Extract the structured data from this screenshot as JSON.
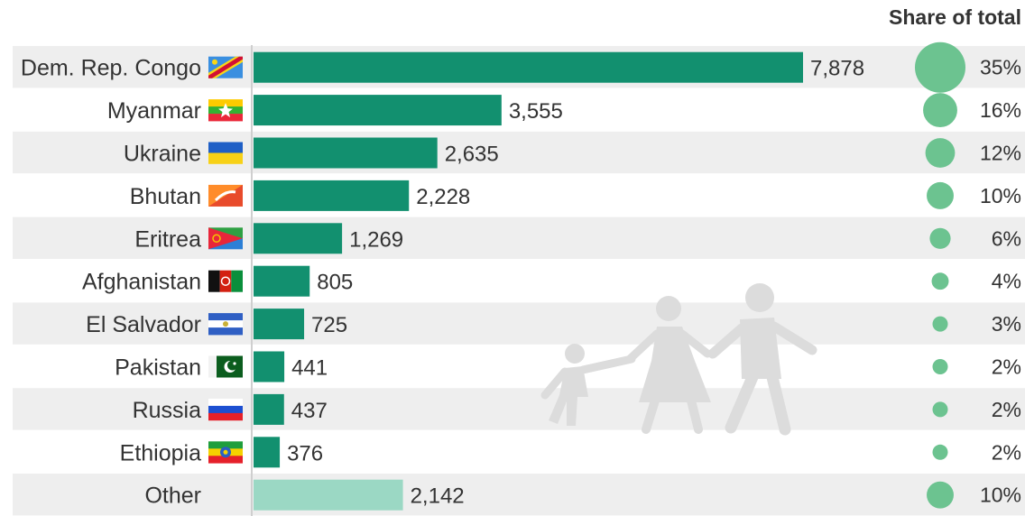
{
  "chart_data": {
    "type": "bar",
    "orientation": "horizontal",
    "categories": [
      "Dem. Rep. Congo",
      "Myanmar",
      "Ukraine",
      "Bhutan",
      "Eritrea",
      "Afghanistan",
      "El Salvador",
      "Pakistan",
      "Russia",
      "Ethiopia",
      "Other"
    ],
    "values": [
      7878,
      3555,
      2635,
      2228,
      1269,
      805,
      725,
      441,
      437,
      376,
      2142
    ],
    "value_labels": [
      "7,878",
      "3,555",
      "2,635",
      "2,228",
      "1,269",
      "805",
      "725",
      "441",
      "437",
      "376",
      "2,142"
    ],
    "share_header": "Share of total",
    "shares": [
      35,
      16,
      12,
      10,
      6,
      4,
      3,
      2,
      2,
      2,
      10
    ],
    "share_labels": [
      "35%",
      "16%",
      "12%",
      "10%",
      "6%",
      "4%",
      "3%",
      "2%",
      "2%",
      "2%",
      "10%"
    ],
    "flags": [
      "congo-flag",
      "myanmar-flag",
      "ukraine-flag",
      "bhutan-flag",
      "eritrea-flag",
      "afghanistan-flag",
      "el-salvador-flag",
      "pakistan-flag",
      "russia-flag",
      "ethiopia-flag",
      null
    ],
    "xlim": [
      0,
      7878
    ],
    "colors": {
      "bar": "#12906f",
      "bar_other": "#9bd8c4",
      "bubble": "#6cc390",
      "row_band": "#eeeeee",
      "watermark": "#dcdcdc"
    },
    "watermark_icon": "family-walking-icon"
  }
}
